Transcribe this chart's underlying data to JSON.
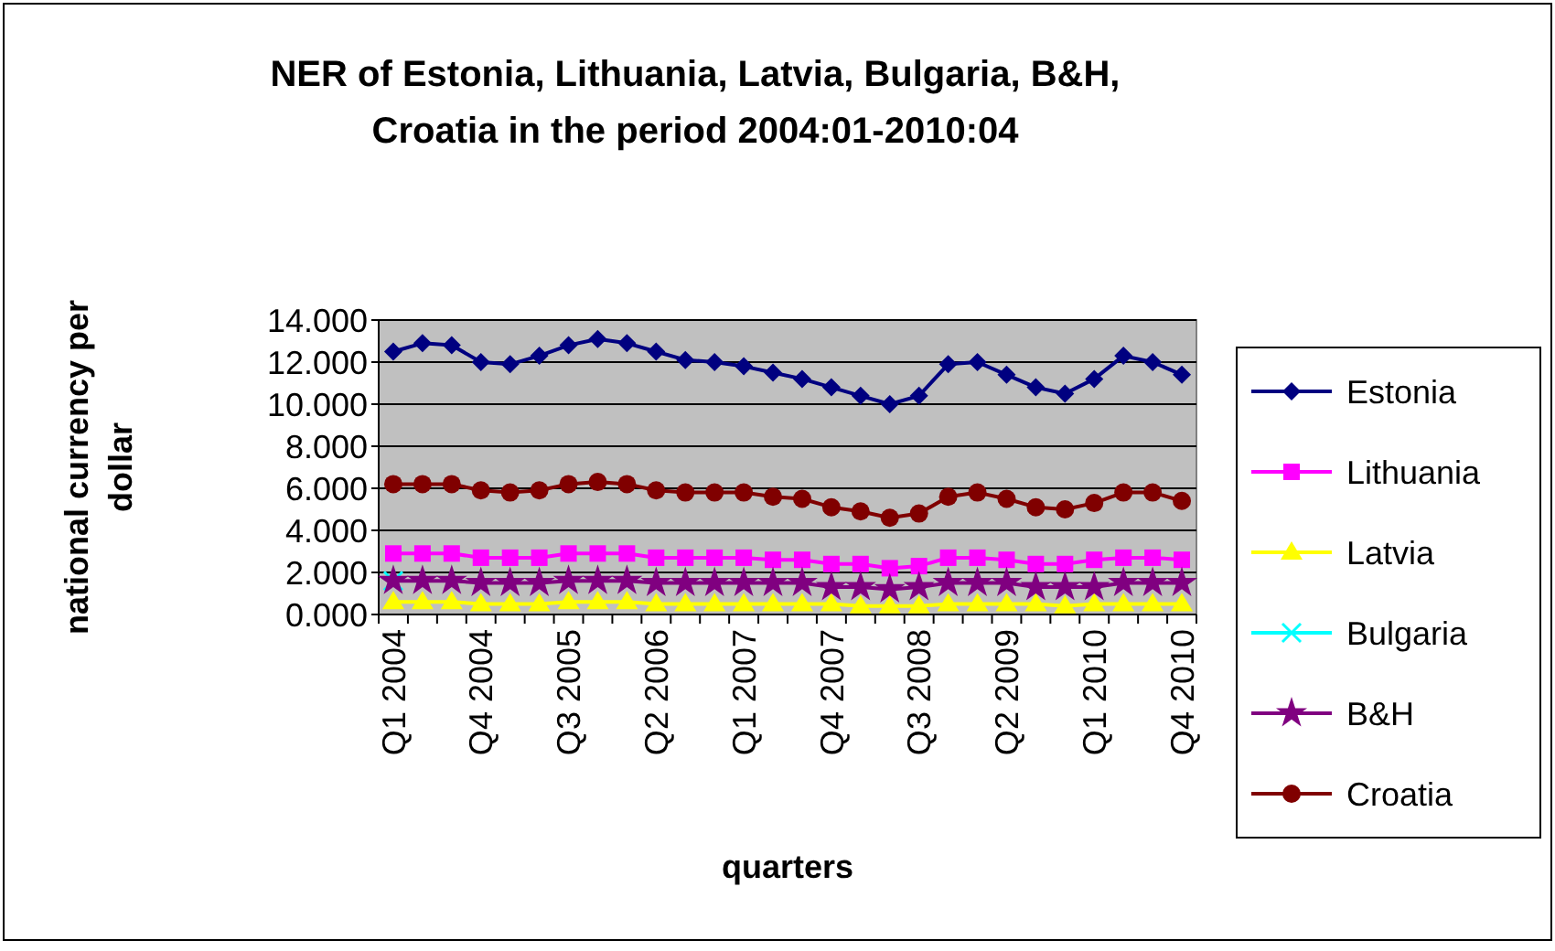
{
  "chart_data": {
    "type": "line",
    "title": "NER of Estonia, Lithuania, Latvia, Bulgaria, B&H, Croatia in the period 2004:01-2010:04",
    "xlabel": "quarters",
    "ylabel": "national currency per dollar",
    "categories": [
      "Q1 2004",
      null,
      null,
      "Q4 2004",
      null,
      null,
      "Q3 2005",
      null,
      null,
      "Q2 2006",
      null,
      null,
      "Q1 2007",
      null,
      null,
      "Q4 2007",
      null,
      null,
      "Q3 2008",
      null,
      null,
      "Q2 2009",
      null,
      null,
      "Q1 2010",
      null,
      null,
      "Q4 2010"
    ],
    "series": [
      {
        "name": "Estonia",
        "color": "#000080",
        "marker": "diamond",
        "values": [
          12.5,
          12.9,
          12.8,
          12.0,
          11.9,
          12.3,
          12.8,
          13.1,
          12.9,
          12.5,
          12.1,
          12.0,
          11.8,
          11.5,
          11.2,
          10.8,
          10.4,
          10.0,
          10.4,
          11.9,
          12.0,
          11.4,
          10.8,
          10.5,
          11.2,
          12.3,
          12.0,
          11.4
        ]
      },
      {
        "name": "Lithuania",
        "color": "#ff00ff",
        "marker": "square",
        "values": [
          2.9,
          2.9,
          2.9,
          2.7,
          2.7,
          2.7,
          2.9,
          2.9,
          2.9,
          2.7,
          2.7,
          2.7,
          2.7,
          2.6,
          2.6,
          2.4,
          2.4,
          2.2,
          2.3,
          2.7,
          2.7,
          2.6,
          2.4,
          2.4,
          2.6,
          2.7,
          2.7,
          2.6
        ]
      },
      {
        "name": "Latvia",
        "color": "#ffff00",
        "marker": "triangle",
        "values": [
          0.6,
          0.6,
          0.6,
          0.5,
          0.5,
          0.5,
          0.6,
          0.6,
          0.6,
          0.5,
          0.5,
          0.5,
          0.5,
          0.5,
          0.5,
          0.5,
          0.4,
          0.4,
          0.4,
          0.5,
          0.5,
          0.5,
          0.5,
          0.4,
          0.5,
          0.5,
          0.5,
          0.5
        ]
      },
      {
        "name": "Bulgaria",
        "color": "#00ffff",
        "marker": "cross",
        "values": [
          1.6,
          null,
          null,
          null,
          null,
          null,
          null,
          null,
          null,
          null,
          null,
          null,
          null,
          null,
          null,
          null,
          null,
          null,
          null,
          null,
          null,
          null,
          null,
          null,
          null,
          null,
          null,
          null
        ]
      },
      {
        "name": "B&H",
        "color": "#800080",
        "marker": "star",
        "values": [
          1.6,
          1.6,
          1.6,
          1.5,
          1.5,
          1.5,
          1.6,
          1.6,
          1.6,
          1.5,
          1.5,
          1.5,
          1.5,
          1.5,
          1.5,
          1.3,
          1.3,
          1.2,
          1.3,
          1.5,
          1.5,
          1.5,
          1.3,
          1.3,
          1.3,
          1.5,
          1.5,
          1.5
        ]
      },
      {
        "name": "Croatia",
        "color": "#800000",
        "marker": "circle",
        "values": [
          6.2,
          6.2,
          6.2,
          5.9,
          5.8,
          5.9,
          6.2,
          6.3,
          6.2,
          5.9,
          5.8,
          5.8,
          5.8,
          5.6,
          5.5,
          5.1,
          4.9,
          4.6,
          4.8,
          5.6,
          5.8,
          5.5,
          5.1,
          5.0,
          5.3,
          5.8,
          5.8,
          5.4
        ]
      }
    ],
    "ylim": [
      0,
      14
    ],
    "yticks": [
      {
        "value": 0,
        "label": "0.000"
      },
      {
        "value": 2,
        "label": "2.000"
      },
      {
        "value": 4,
        "label": "4.000"
      },
      {
        "value": 6,
        "label": "6.000"
      },
      {
        "value": 8,
        "label": "8.000"
      },
      {
        "value": 10,
        "label": "10.000"
      },
      {
        "value": 12,
        "label": "12.000"
      },
      {
        "value": 14,
        "label": "14.000"
      }
    ],
    "grid": "y",
    "legend": "right"
  }
}
